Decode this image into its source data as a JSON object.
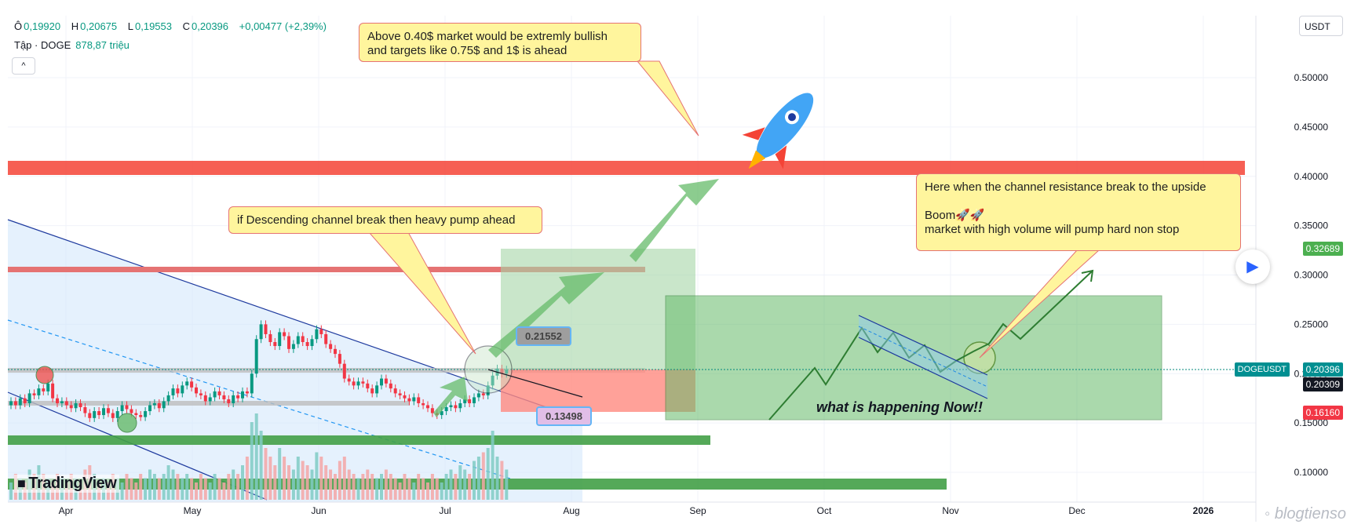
{
  "header": {
    "open_label": "Ô",
    "open": "0,19920",
    "high_label": "H",
    "high": "0,20675",
    "low_label": "L",
    "low": "0,19553",
    "close_label": "C",
    "close": "0,20396",
    "change": "+0,00477 (+2,39%)",
    "volume_label": "Tập · DOGE",
    "volume": "878,87 triệu",
    "collapse_icon": "chevron-up-icon"
  },
  "currency": "USDT",
  "callouts": {
    "top": "Above 0.40$ market would be extremly bullish\nand targets like 0.75$ and 1$ is ahead",
    "middle": "if Descending channel break then heavy pump ahead",
    "right": "Here when the channel resistance break to the upside\n\nBoom🚀🚀\nmarket with high volume will pump hard non stop"
  },
  "price_tags": {
    "target": "0.21552",
    "stop": "0.13498"
  },
  "now_text": "what is happening Now!!",
  "symbol_badge": "DOGEUSDT",
  "axis_badges": {
    "top_price": "0.32689",
    "last_price": "0.20396",
    "prev_price": "0.20309",
    "low_price": "0.16160"
  },
  "brand": "TradingView",
  "watermark": "blogtienso",
  "colors": {
    "up": "#089981",
    "down": "#f23645",
    "accent": "#2962ff"
  },
  "chart_data": {
    "type": "candlestick",
    "symbol": "DOGEUSDT",
    "y_axis": {
      "ticks": [
        "0.10000",
        "0.15000",
        "0.20000",
        "0.25000",
        "0.30000",
        "0.35000",
        "0.40000",
        "0.45000",
        "0.50000"
      ],
      "ylim": [
        0.09,
        0.54
      ]
    },
    "x_axis": {
      "ticks": [
        "Apr",
        "May",
        "Jun",
        "Jul",
        "Aug",
        "Sep",
        "Oct",
        "Nov",
        "Dec",
        "2026"
      ]
    },
    "candles_close": [
      0.172,
      0.168,
      0.175,
      0.17,
      0.18,
      0.178,
      0.185,
      0.182,
      0.19,
      0.175,
      0.17,
      0.172,
      0.168,
      0.165,
      0.17,
      0.166,
      0.16,
      0.155,
      0.162,
      0.158,
      0.165,
      0.16,
      0.155,
      0.162,
      0.168,
      0.164,
      0.16,
      0.158,
      0.156,
      0.162,
      0.168,
      0.17,
      0.165,
      0.172,
      0.178,
      0.185,
      0.18,
      0.188,
      0.192,
      0.186,
      0.18,
      0.178,
      0.172,
      0.176,
      0.182,
      0.178,
      0.174,
      0.17,
      0.178,
      0.175,
      0.182,
      0.18,
      0.2,
      0.235,
      0.25,
      0.24,
      0.232,
      0.228,
      0.242,
      0.238,
      0.225,
      0.23,
      0.238,
      0.232,
      0.228,
      0.235,
      0.245,
      0.24,
      0.23,
      0.225,
      0.22,
      0.21,
      0.195,
      0.192,
      0.188,
      0.192,
      0.19,
      0.185,
      0.18,
      0.188,
      0.195,
      0.19,
      0.185,
      0.18,
      0.178,
      0.175,
      0.172,
      0.176,
      0.17,
      0.168,
      0.165,
      0.16,
      0.158,
      0.162,
      0.166,
      0.168,
      0.165,
      0.17,
      0.174,
      0.17,
      0.176,
      0.18,
      0.178,
      0.188,
      0.198,
      0.205,
      0.2,
      0.204
    ],
    "volume_relative": [
      0.2,
      0.3,
      0.25,
      0.2,
      0.35,
      0.3,
      0.4,
      0.3,
      0.25,
      0.2,
      0.3,
      0.25,
      0.2,
      0.3,
      0.25,
      0.2,
      0.35,
      0.4,
      0.3,
      0.2,
      0.25,
      0.2,
      0.3,
      0.25,
      0.2,
      0.3,
      0.25,
      0.2,
      0.3,
      0.25,
      0.35,
      0.3,
      0.25,
      0.3,
      0.4,
      0.35,
      0.3,
      0.25,
      0.3,
      0.25,
      0.2,
      0.3,
      0.25,
      0.2,
      0.3,
      0.25,
      0.2,
      0.3,
      0.35,
      0.3,
      0.4,
      0.5,
      0.9,
      1.0,
      0.8,
      0.6,
      0.5,
      0.4,
      0.6,
      0.5,
      0.4,
      0.35,
      0.5,
      0.45,
      0.4,
      0.35,
      0.55,
      0.5,
      0.4,
      0.35,
      0.3,
      0.45,
      0.5,
      0.35,
      0.3,
      0.25,
      0.3,
      0.35,
      0.3,
      0.25,
      0.3,
      0.35,
      0.3,
      0.25,
      0.2,
      0.3,
      0.25,
      0.2,
      0.3,
      0.25,
      0.2,
      0.3,
      0.25,
      0.2,
      0.3,
      0.35,
      0.3,
      0.4,
      0.35,
      0.3,
      0.45,
      0.5,
      0.55,
      0.6,
      0.8,
      0.5,
      0.45,
      0.35
    ],
    "horizontal_zones": [
      0.4,
      0.306,
      0.135,
      0.1
    ],
    "levels": [
      0.32689,
      0.21552,
      0.20396,
      0.20309,
      0.1616,
      0.13498
    ]
  }
}
